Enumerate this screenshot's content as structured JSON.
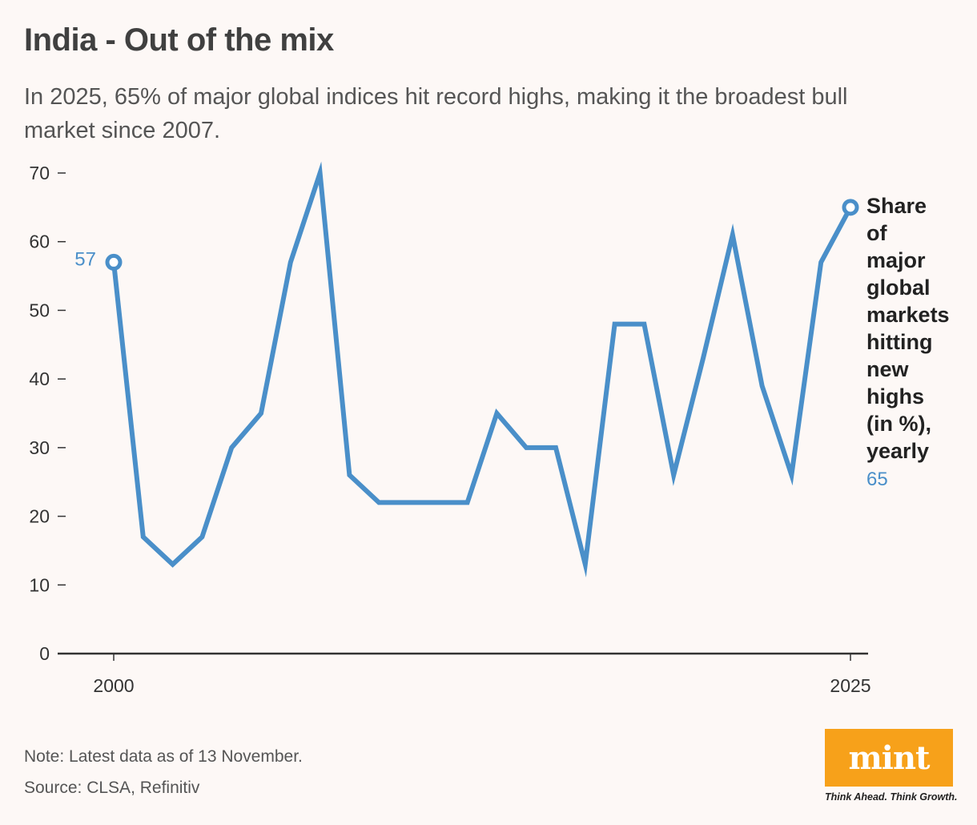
{
  "header": {
    "title": "India - Out of the mix",
    "subtitle": "In 2025, 65% of major global indices hit record highs, making it the broadest bull market since 2007."
  },
  "chart_data": {
    "type": "line",
    "x": [
      2000,
      2001,
      2002,
      2003,
      2004,
      2005,
      2006,
      2007,
      2008,
      2009,
      2010,
      2011,
      2012,
      2013,
      2014,
      2015,
      2016,
      2017,
      2018,
      2019,
      2020,
      2021,
      2022,
      2023,
      2024,
      2025
    ],
    "series": [
      {
        "name": "Share of major global markets hitting new highs (in %), yearly",
        "name_lines": [
          "Share",
          "of",
          "major",
          "global",
          "markets",
          "hitting",
          "new",
          "highs",
          "(in %),",
          "yearly"
        ],
        "values": [
          57,
          17,
          13,
          17,
          30,
          35,
          57,
          70,
          26,
          22,
          22,
          22,
          22,
          35,
          30,
          30,
          13,
          48,
          48,
          26,
          43,
          61,
          39,
          26,
          57,
          65
        ],
        "color": "#4a8fc9"
      }
    ],
    "x_ticks": [
      "2000",
      "2025"
    ],
    "y_ticks": [
      "0",
      "10",
      "20",
      "30",
      "40",
      "50",
      "60",
      "70"
    ],
    "ylim": [
      0,
      70
    ],
    "start_label": "57",
    "end_label": "65",
    "grid": false
  },
  "footer": {
    "note": "Note: Latest data as of 13 November.",
    "source": "Source: CLSA, Refinitiv"
  },
  "branding": {
    "logo": "mint",
    "tagline": "Think Ahead. Think Growth.",
    "logo_color": "#f7a11a"
  }
}
